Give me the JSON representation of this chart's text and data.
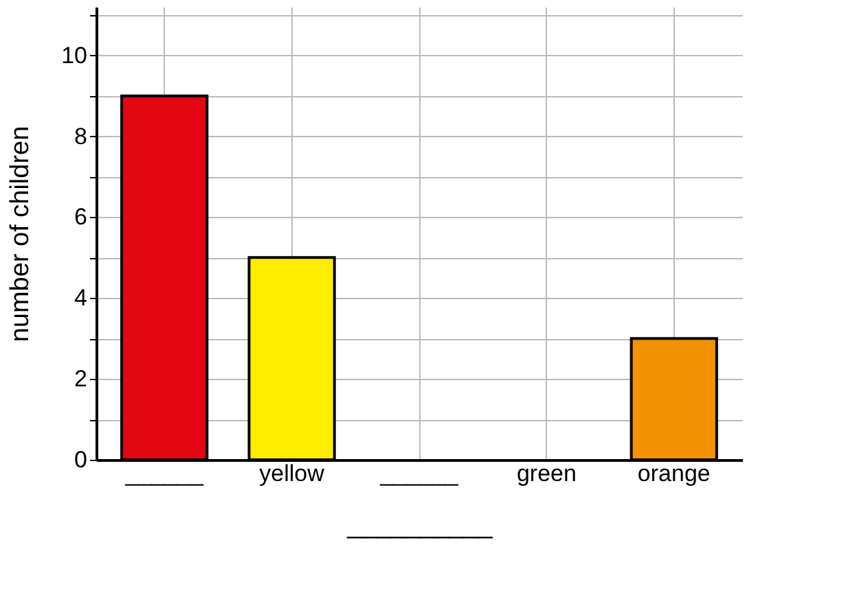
{
  "chart_data": {
    "type": "bar",
    "categories": [
      "______",
      "yellow",
      "______",
      "green",
      "orange"
    ],
    "values": [
      9,
      5,
      null,
      null,
      3
    ],
    "colors": [
      "#e30613",
      "#ffed00",
      null,
      null,
      "#f39200"
    ],
    "xlabel": "__________",
    "ylabel": "number of children",
    "ylim": [
      0,
      11.2
    ],
    "yticks": [
      0,
      {
        "value": 1,
        "label": null
      },
      2,
      {
        "value": 3,
        "label": null
      },
      4,
      {
        "value": 5,
        "label": null
      },
      6,
      {
        "value": 7,
        "label": null
      },
      8,
      {
        "value": 9,
        "label": null
      },
      10,
      {
        "value": 11,
        "label": null
      }
    ],
    "grid": true
  }
}
